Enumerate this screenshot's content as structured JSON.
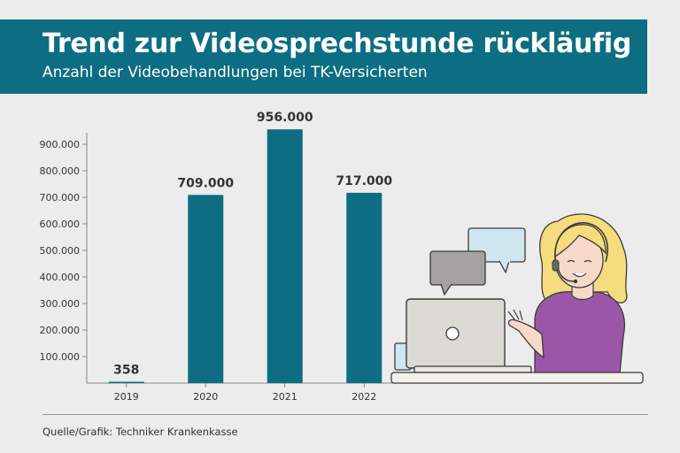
{
  "header": {
    "title": "Trend zur Videosprechstunde rückläufig",
    "subtitle": "Anzahl der Videobehandlungen bei TK-Versicherten"
  },
  "footer": {
    "source": "Quelle/Grafik: Techniker Krankenkasse"
  },
  "colors": {
    "banner": "#0d6e83",
    "bar": "#0d6e83",
    "background": "#ececec",
    "illustration_shirt": "#9a57a8",
    "illustration_hair": "#f5dc7c"
  },
  "illustration": {
    "icon": "woman-at-laptop-video-call-illustration"
  },
  "chart_data": {
    "type": "bar",
    "title": "Trend zur Videosprechstunde rückläufig",
    "subtitle": "Anzahl der Videobehandlungen bei TK-Versicherten",
    "xlabel": "",
    "ylabel": "",
    "categories": [
      "2019",
      "2020",
      "2021",
      "2022"
    ],
    "values": [
      358,
      709000,
      956000,
      717000
    ],
    "data_labels": [
      "358",
      "709.000",
      "956.000",
      "717.000"
    ],
    "yticks": [
      100000,
      200000,
      300000,
      400000,
      500000,
      600000,
      700000,
      800000,
      900000
    ],
    "ytick_labels": [
      "100.000",
      "200.000",
      "300.000",
      "400.000",
      "500.000",
      "600.000",
      "700.000",
      "800.000",
      "900.000"
    ],
    "ylim": [
      0,
      1000000
    ],
    "grid": false,
    "legend": "none"
  }
}
